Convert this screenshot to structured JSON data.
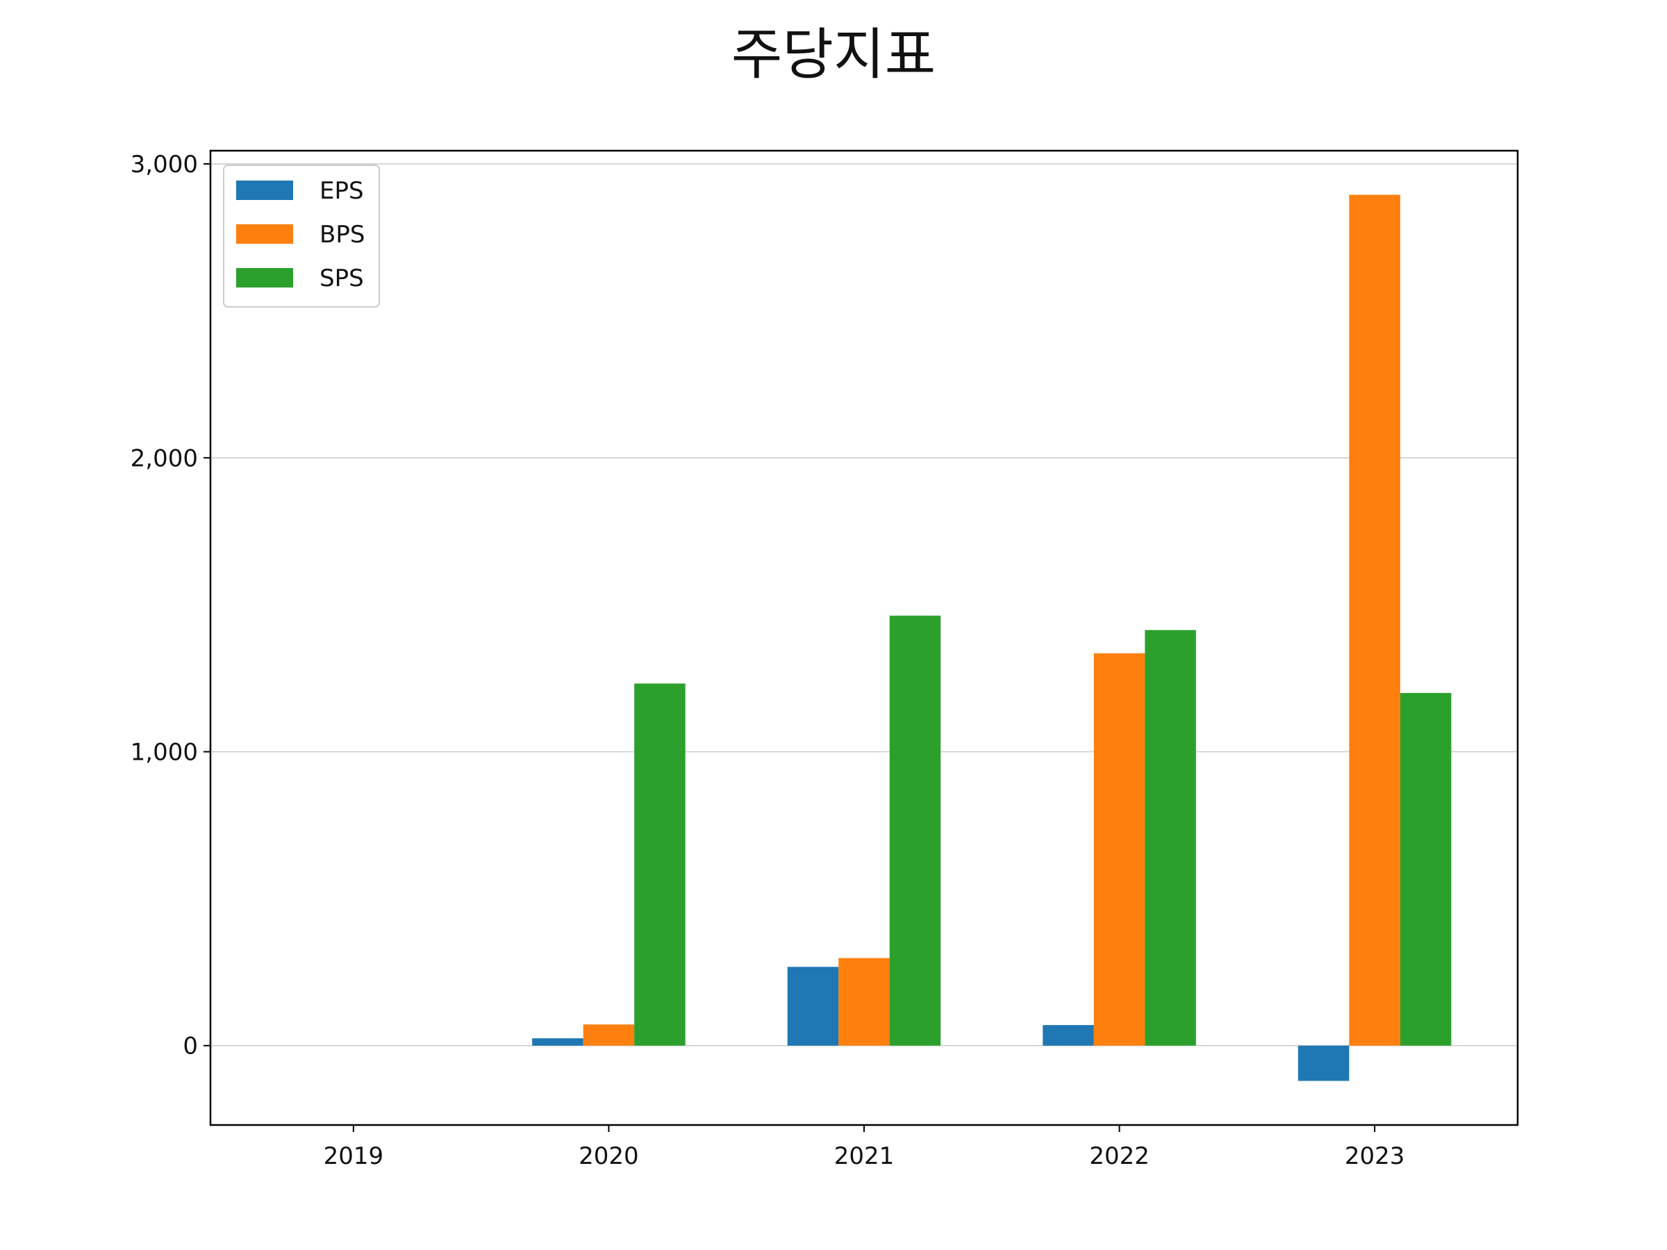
{
  "chart_data": {
    "type": "bar",
    "title": "주당지표",
    "xlabel": "",
    "ylabel": "",
    "categories": [
      "2019",
      "2020",
      "2021",
      "2022",
      "2023"
    ],
    "series": [
      {
        "name": "EPS",
        "color": "#1f77b4",
        "values": [
          0,
          25,
          268,
          70,
          -120
        ]
      },
      {
        "name": "BPS",
        "color": "#ff7f0e",
        "values": [
          0,
          72,
          298,
          1335,
          2895
        ]
      },
      {
        "name": "SPS",
        "color": "#2ca02c",
        "values": [
          0,
          1232,
          1463,
          1414,
          1200
        ]
      }
    ],
    "ylim": [
      -270,
      3045
    ],
    "yticks": [
      0,
      1000,
      2000,
      3000
    ],
    "ytick_labels": [
      "0",
      "1,000",
      "2,000",
      "3,000"
    ],
    "grid": "y",
    "legend": "top-left"
  }
}
